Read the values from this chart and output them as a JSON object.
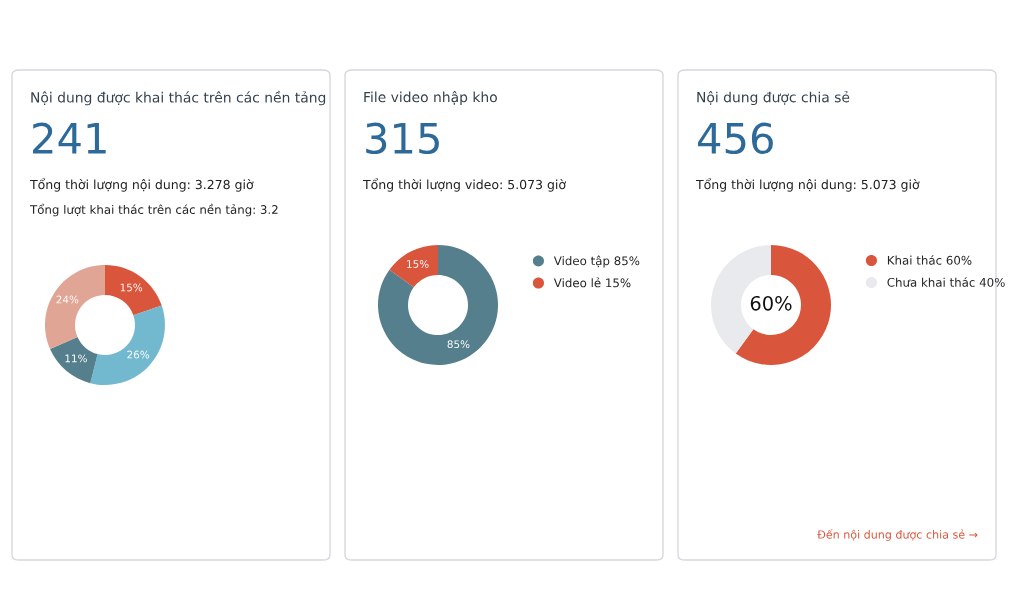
{
  "chart_data": [
    {
      "type": "donut",
      "title": "Nội dung được khai thác trên các nền tảng",
      "subtitle": "Tổng thời lượng nội dung: 3.278 giờ",
      "annotations": [
        "241",
        "Tổng lượt khai thác trên các nền tảng: 3.2"
      ],
      "categories": [
        null,
        null,
        null,
        null
      ],
      "values": [
        15,
        26,
        11,
        24
      ],
      "colors": [
        "#d9553b",
        "#72b8cf",
        "#557f8c",
        "#e0a595"
      ],
      "value_labels": [
        "15%",
        "26%",
        "11%",
        "24%"
      ]
    },
    {
      "type": "donut",
      "title": "File video nhập kho",
      "subtitle": "Tổng thời lượng video: 5.073 giờ",
      "annotations": [
        "315"
      ],
      "categories": [
        "Video tập 85%",
        "Video lẻ 15%"
      ],
      "values": [
        85,
        15
      ],
      "colors": [
        "#557f8c",
        "#d9553b"
      ],
      "value_labels": [
        "85%",
        "15%"
      ],
      "legend": "right"
    },
    {
      "type": "donut",
      "title": "Nội dung được chia sẻ",
      "subtitle": "Tổng thời lượng nội dung: 5.073 giờ",
      "annotations": [
        "456",
        "60%",
        "Đến nội dung được chia sẻ →"
      ],
      "categories": [
        "Khai thác 60%",
        "Chưa khai thác 40%"
      ],
      "values": [
        60,
        40
      ],
      "colors": [
        "#d9553b",
        "#e8eaee"
      ],
      "legend": "right"
    }
  ]
}
